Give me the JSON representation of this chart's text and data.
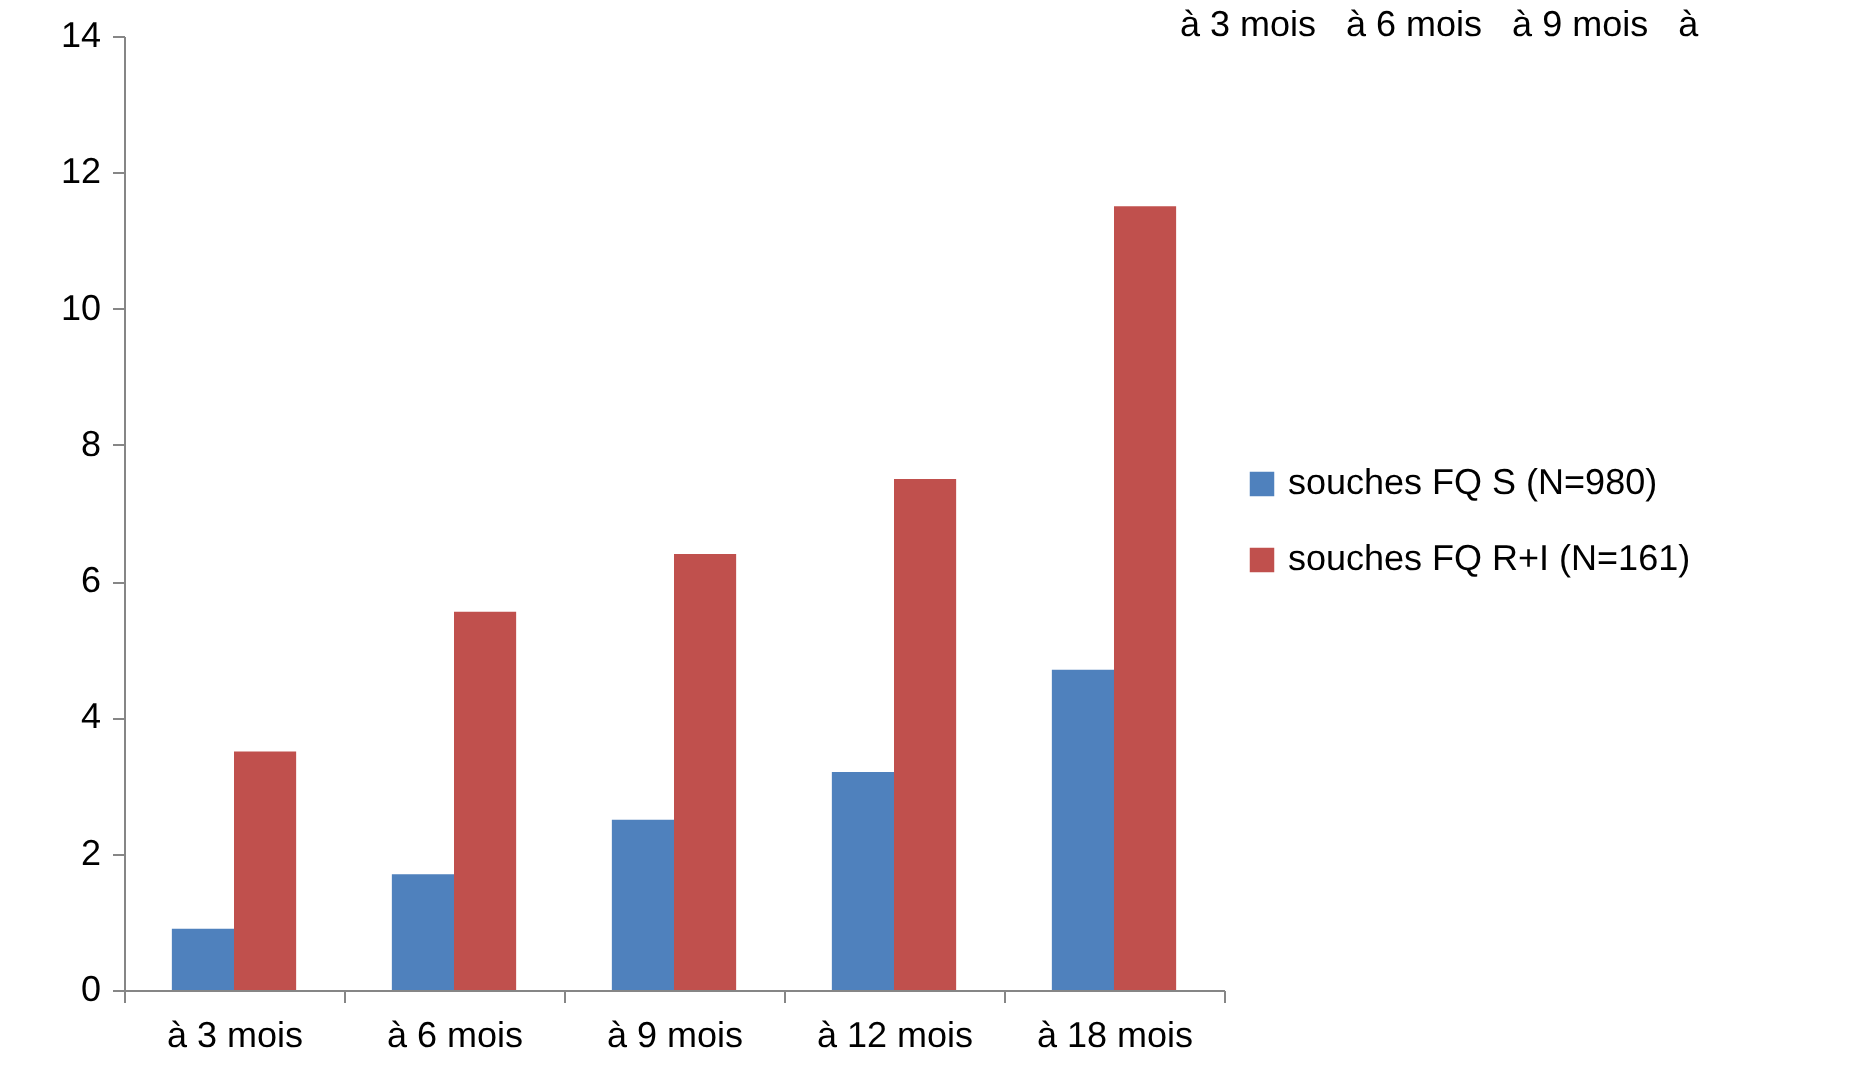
{
  "chart_data": {
    "type": "bar",
    "categories": [
      "à 3 mois",
      "à 6 mois",
      "à 9 mois",
      "à 12 mois",
      "à 18 mois"
    ],
    "series": [
      {
        "name": "souches FQ S (N=980)",
        "color": "#4f81bd",
        "values": [
          0.9,
          1.7,
          2.5,
          3.2,
          4.7
        ]
      },
      {
        "name": "souches FQ R+I (N=161)",
        "color": "#c0504d",
        "values": [
          3.5,
          5.55,
          6.4,
          7.5,
          11.5
        ]
      }
    ],
    "ylim": [
      0,
      14
    ],
    "yticks": [
      0,
      2,
      4,
      6,
      8,
      10,
      12,
      14
    ],
    "grid": false,
    "legend": "right",
    "annotations": [
      "à 3 mois   à 6 mois   à 9 mois   à"
    ]
  }
}
